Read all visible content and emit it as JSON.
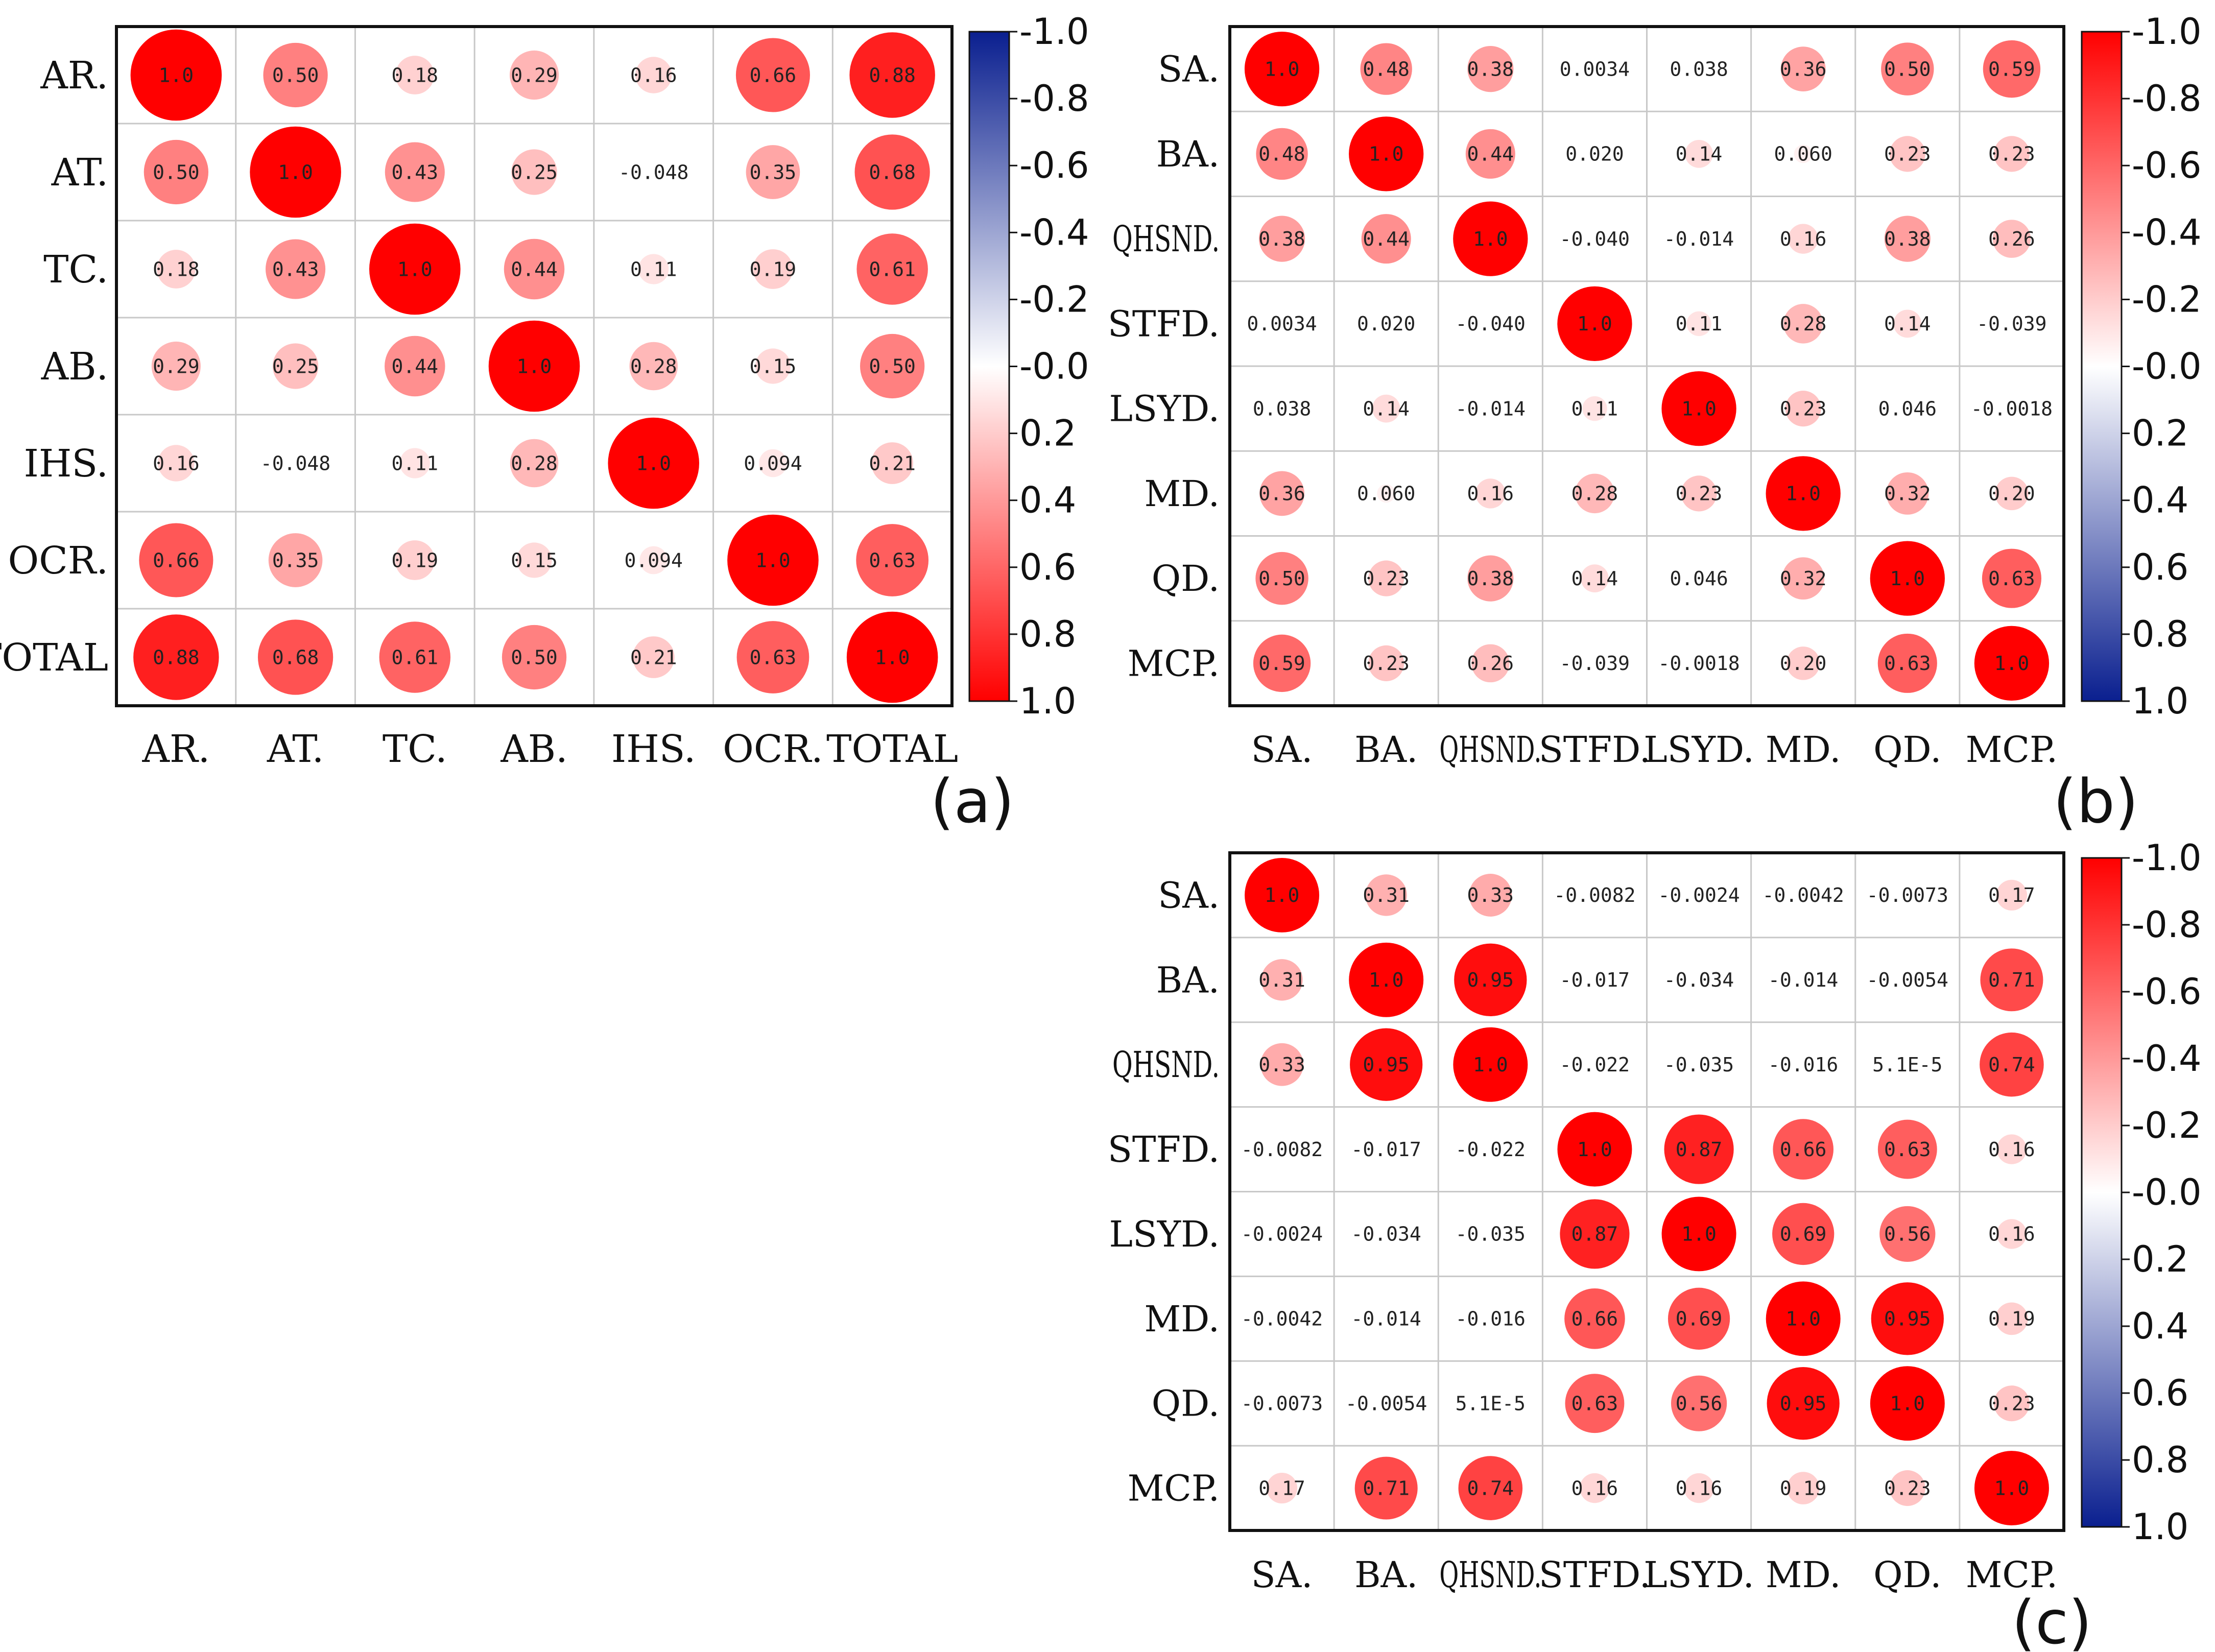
{
  "chart_data": [
    {
      "type": "heatmap",
      "panel_label": "(a)",
      "labels": [
        "AR.",
        "AT.",
        "TC.",
        "AB.",
        "IHS.",
        "OCR.",
        "TOTAL"
      ],
      "value_labels": [
        [
          "1.0",
          "0.50",
          "0.18",
          "0.29",
          "0.16",
          "0.66",
          "0.88"
        ],
        [
          "0.50",
          "1.0",
          "0.43",
          "0.25",
          "-0.048",
          "0.35",
          "0.68"
        ],
        [
          "0.18",
          "0.43",
          "1.0",
          "0.44",
          "0.11",
          "0.19",
          "0.61"
        ],
        [
          "0.29",
          "0.25",
          "0.44",
          "1.0",
          "0.28",
          "0.15",
          "0.50"
        ],
        [
          "0.16",
          "-0.048",
          "0.11",
          "0.28",
          "1.0",
          "0.094",
          "0.21"
        ],
        [
          "0.66",
          "0.35",
          "0.19",
          "0.15",
          "0.094",
          "1.0",
          "0.63"
        ],
        [
          "0.88",
          "0.68",
          "0.61",
          "0.50",
          "0.21",
          "0.63",
          "1.0"
        ]
      ],
      "colorbar": {
        "ticks": [
          "-1.0",
          "-0.8",
          "-0.6",
          "-0.4",
          "-0.2",
          "-0.0",
          "0.2",
          "0.4",
          "0.6",
          "0.8",
          "1.0"
        ],
        "top_color": "#0a1f8f",
        "mid_color": "#ffffff",
        "bottom_color": "#ff0000"
      }
    },
    {
      "type": "heatmap",
      "panel_label": "(b)",
      "labels": [
        "SA.",
        "BA.",
        "QHSND.",
        "STFD.",
        "LSYD.",
        "MD.",
        "QD.",
        "MCP."
      ],
      "value_labels": [
        [
          "1.0",
          "0.48",
          "0.38",
          "0.0034",
          "0.038",
          "0.36",
          "0.50",
          "0.59"
        ],
        [
          "0.48",
          "1.0",
          "0.44",
          "0.020",
          "0.14",
          "0.060",
          "0.23",
          "0.23"
        ],
        [
          "0.38",
          "0.44",
          "1.0",
          "-0.040",
          "-0.014",
          "0.16",
          "0.38",
          "0.26"
        ],
        [
          "0.0034",
          "0.020",
          "-0.040",
          "1.0",
          "0.11",
          "0.28",
          "0.14",
          "-0.039"
        ],
        [
          "0.038",
          "0.14",
          "-0.014",
          "0.11",
          "1.0",
          "0.23",
          "0.046",
          "-0.0018"
        ],
        [
          "0.36",
          "0.060",
          "0.16",
          "0.28",
          "0.23",
          "1.0",
          "0.32",
          "0.20"
        ],
        [
          "0.50",
          "0.23",
          "0.38",
          "0.14",
          "0.046",
          "0.32",
          "1.0",
          "0.63"
        ],
        [
          "0.59",
          "0.23",
          "0.26",
          "-0.039",
          "-0.0018",
          "0.20",
          "0.63",
          "1.0"
        ]
      ],
      "colorbar": {
        "ticks": [
          "-1.0",
          "-0.8",
          "-0.6",
          "-0.4",
          "-0.2",
          "-0.0",
          "0.2",
          "0.4",
          "0.6",
          "0.8",
          "1.0"
        ],
        "top_color": "#ff0000",
        "mid_color": "#ffffff",
        "bottom_color": "#0a1f8f"
      }
    },
    {
      "type": "heatmap",
      "panel_label": "(c)",
      "labels": [
        "SA.",
        "BA.",
        "QHSND.",
        "STFD.",
        "LSYD.",
        "MD.",
        "QD.",
        "MCP."
      ],
      "value_labels": [
        [
          "1.0",
          "0.31",
          "0.33",
          "-0.0082",
          "-0.0024",
          "-0.0042",
          "-0.0073",
          "0.17"
        ],
        [
          "0.31",
          "1.0",
          "0.95",
          "-0.017",
          "-0.034",
          "-0.014",
          "-0.0054",
          "0.71"
        ],
        [
          "0.33",
          "0.95",
          "1.0",
          "-0.022",
          "-0.035",
          "-0.016",
          "5.1E-5",
          "0.74"
        ],
        [
          "-0.0082",
          "-0.017",
          "-0.022",
          "1.0",
          "0.87",
          "0.66",
          "0.63",
          "0.16"
        ],
        [
          "-0.0024",
          "-0.034",
          "-0.035",
          "0.87",
          "1.0",
          "0.69",
          "0.56",
          "0.16"
        ],
        [
          "-0.0042",
          "-0.014",
          "-0.016",
          "0.66",
          "0.69",
          "1.0",
          "0.95",
          "0.19"
        ],
        [
          "-0.0073",
          "-0.0054",
          "5.1E-5",
          "0.63",
          "0.56",
          "0.95",
          "1.0",
          "0.23"
        ],
        [
          "0.17",
          "0.71",
          "0.74",
          "0.16",
          "0.16",
          "0.19",
          "0.23",
          "1.0"
        ]
      ],
      "colorbar": {
        "ticks": [
          "-1.0",
          "-0.8",
          "-0.6",
          "-0.4",
          "-0.2",
          "-0.0",
          "0.2",
          "0.4",
          "0.6",
          "0.8",
          "1.0"
        ],
        "top_color": "#ff0000",
        "mid_color": "#ffffff",
        "bottom_color": "#0a1f8f"
      }
    }
  ],
  "colors": {
    "positive": "#ff0000",
    "neutral": "#ffffff",
    "negative": "#0a1f8f",
    "grid": "#c8c8c8",
    "border": "#111111"
  }
}
